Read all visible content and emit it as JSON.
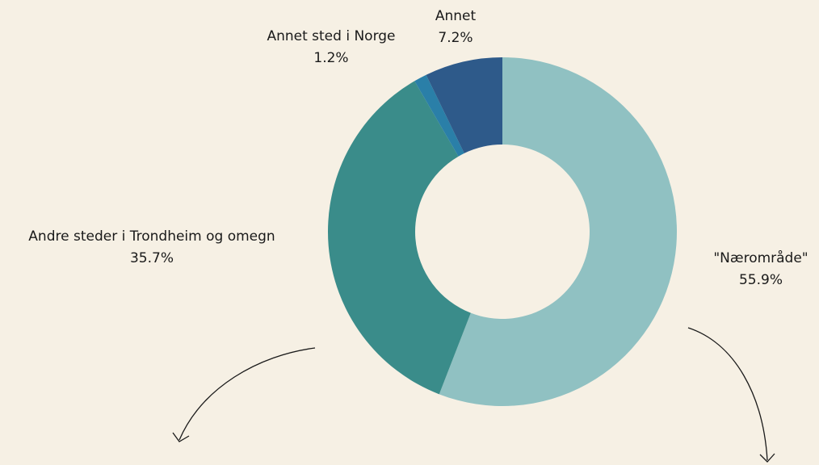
{
  "chart_data": {
    "type": "pie",
    "donut": true,
    "categories": [
      "\"Nærområde\"",
      "Andre steder i Trondheim og omegn",
      "Annet sted i Norge",
      "Annet"
    ],
    "values": [
      55.9,
      35.7,
      1.2,
      7.2
    ],
    "value_labels": [
      "55.9%",
      "35.7%",
      "1.2%",
      "7.2%"
    ],
    "colors": [
      "#90c1c2",
      "#3a8c8a",
      "#2a7fa8",
      "#2e5a8a"
    ]
  }
}
